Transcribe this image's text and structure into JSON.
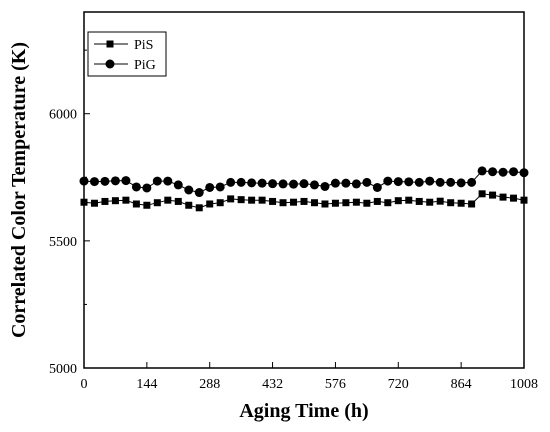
{
  "chart_data": {
    "type": "line",
    "title": "",
    "xlabel": "Aging Time (h)",
    "ylabel": "Correlated Color Temperature (K)",
    "xlim": [
      0,
      1008
    ],
    "ylim": [
      5000,
      6400
    ],
    "xticks": [
      0,
      144,
      288,
      432,
      576,
      720,
      864,
      1008
    ],
    "yticks": [
      5000,
      5500,
      6000
    ],
    "grid": false,
    "legend_position": "top-left",
    "x": [
      0,
      24,
      48,
      72,
      96,
      120,
      144,
      168,
      192,
      216,
      240,
      264,
      288,
      312,
      336,
      360,
      384,
      408,
      432,
      456,
      480,
      504,
      528,
      552,
      576,
      600,
      624,
      648,
      672,
      696,
      720,
      744,
      768,
      792,
      816,
      840,
      864,
      888,
      912,
      936,
      960,
      984,
      1008
    ],
    "series": [
      {
        "name": "PiS",
        "marker": "square",
        "color": "#000000",
        "values": [
          5652,
          5648,
          5655,
          5658,
          5660,
          5645,
          5640,
          5650,
          5660,
          5655,
          5640,
          5630,
          5645,
          5650,
          5665,
          5662,
          5660,
          5660,
          5655,
          5650,
          5652,
          5655,
          5650,
          5645,
          5648,
          5650,
          5652,
          5648,
          5655,
          5650,
          5658,
          5660,
          5655,
          5652,
          5656,
          5650,
          5648,
          5645,
          5685,
          5680,
          5672,
          5668,
          5660
        ]
      },
      {
        "name": "PiG",
        "marker": "circle",
        "color": "#000000",
        "values": [
          5735,
          5733,
          5734,
          5736,
          5737,
          5712,
          5708,
          5735,
          5735,
          5720,
          5700,
          5690,
          5710,
          5712,
          5730,
          5730,
          5728,
          5727,
          5725,
          5724,
          5723,
          5725,
          5720,
          5714,
          5727,
          5727,
          5724,
          5730,
          5710,
          5735,
          5733,
          5732,
          5730,
          5735,
          5730,
          5730,
          5728,
          5730,
          5775,
          5772,
          5770,
          5772,
          5768
        ]
      }
    ]
  }
}
